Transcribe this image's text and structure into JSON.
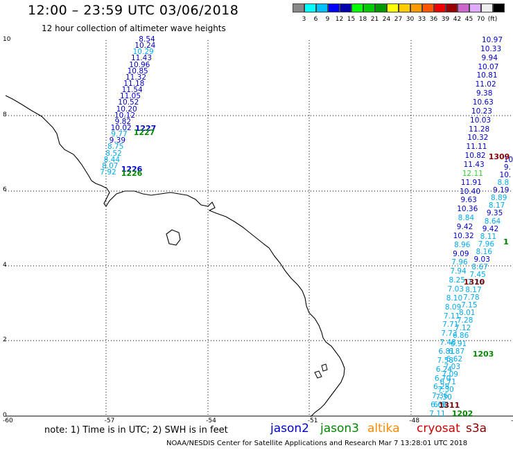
{
  "header": {
    "title": "12:00 – 23:59 UTC 03/06/2018",
    "subtitle": "12 hour collection of altimeter wave heights"
  },
  "legend": {
    "colors": [
      "#888888",
      "#00ffff",
      "#00bfff",
      "#0000ff",
      "#0000aa",
      "#00ff00",
      "#00cc00",
      "#009900",
      "#ffff00",
      "#ffcc00",
      "#ff9900",
      "#ff5500",
      "#ee0000",
      "#990000",
      "#cc66cc",
      "#ddaaff",
      "#eeeeee",
      "#000000"
    ],
    "labels": [
      "3",
      "6",
      "9",
      "12",
      "15",
      "18",
      "21",
      "24",
      "27",
      "30",
      "33",
      "36",
      "39",
      "42",
      "45",
      "70",
      "(ft)"
    ]
  },
  "axes": {
    "y_ticks": [
      "10",
      "8",
      "6",
      "4",
      "2",
      "0"
    ],
    "x_ticks": [
      "-60",
      "-57",
      "-54",
      "-51",
      "-48",
      "-45"
    ]
  },
  "note": "note:  1) Time is in UTC;  2) SWH is in feet",
  "satellites": [
    {
      "name": "jason2",
      "color": "#0000cc"
    },
    {
      "name": "jason3",
      "color": "#008800"
    },
    {
      "name": "altika",
      "color": "#ff8800"
    },
    {
      "name": "cryosat",
      "color": "#cc0000"
    },
    {
      "name": "s3a",
      "color": "#880000"
    }
  ],
  "footer": "NOAA/NESDIS Center for Satellite Applications and Research   Mar  7 13:28:01 UTC 2018",
  "map": {
    "track_1": [
      "8.54",
      "10.24",
      "10.29",
      "11.43",
      "10.96",
      "10.85",
      "11.32",
      "11.18",
      "11.54",
      "11.05",
      "10.52",
      "10.20",
      "10.12",
      "9.82",
      "10.02",
      "9.77",
      "9.39",
      "8.75",
      "8.52",
      "8.44",
      "8.07",
      "7.92"
    ],
    "track_1_color": [
      "#0000cc",
      "#0000cc",
      "#00aaee",
      "#0000cc",
      "#0000cc",
      "#0000cc",
      "#0000cc",
      "#0000cc",
      "#0000cc",
      "#0000cc",
      "#0000cc",
      "#0000cc",
      "#0000cc",
      "#0000cc",
      "#0000cc",
      "#00aaee",
      "#0000cc",
      "#00aaee",
      "#00aaee",
      "#00aaee",
      "#00aaee",
      "#00aaee"
    ],
    "track_2": [
      "10.97",
      "10.33",
      "9.94",
      "10.07",
      "10.81",
      "11.02",
      "9.38",
      "10.63",
      "10.23",
      "10.03",
      "11.28",
      "10.32",
      "11.11",
      "10.82",
      "11.43",
      "12.11",
      "11.91",
      "10.40",
      "9.63",
      "10.36",
      "8.84",
      "9.42",
      "10.32",
      "8.96",
      "9.09",
      "7.96",
      "7.94",
      "8.25",
      "7.03",
      "8.10",
      "8.09",
      "7.11",
      "7.71",
      "7.73",
      "7.48",
      "6.81",
      "7.58",
      "6.24",
      "6.70",
      "6.28",
      "7.36",
      "6.66",
      "7.11"
    ],
    "track_2_color": [
      "#0000cc",
      "#0000cc",
      "#0000cc",
      "#0000cc",
      "#0000cc",
      "#0000cc",
      "#0000cc",
      "#0000cc",
      "#0000cc",
      "#0000cc",
      "#0000cc",
      "#0000cc",
      "#0000cc",
      "#0000cc",
      "#0000cc",
      "#33cc33",
      "#0000cc",
      "#0000cc",
      "#0000cc",
      "#0000cc",
      "#00aaee",
      "#0000cc",
      "#0000cc",
      "#00aaee",
      "#0000cc",
      "#00aaee",
      "#00aaee",
      "#00aaee",
      "#00aaee",
      "#00aaee",
      "#00aaee",
      "#00aaee",
      "#00aaee",
      "#00aaee",
      "#00aaee",
      "#00aaee",
      "#00aaee",
      "#00aaee",
      "#00aaee",
      "#00aaee",
      "#00aaee",
      "#00aaee",
      "#00aaee"
    ],
    "track_3": [
      "10.",
      "9.",
      "10.",
      "8.8",
      "9.19",
      "8.89",
      "8.17",
      "9.35",
      "8.64",
      "9.42",
      "8.11",
      "7.96",
      "8.16",
      "9.03",
      "8.67",
      "7.45",
      "7.26",
      "8.17",
      "7.78",
      "7.15",
      "8.01",
      "7.28",
      "7.12",
      "6.86",
      "6.91",
      "6.87",
      "6.62",
      "7.03",
      "7.09",
      "6.71",
      "7.30",
      "7.30",
      "6.61"
    ],
    "track_3_color": [
      "#0000cc",
      "#0000cc",
      "#0000cc",
      "#00aaee",
      "#0000cc",
      "#00aaee",
      "#00aaee",
      "#0000cc",
      "#00aaee",
      "#0000cc",
      "#00aaee",
      "#00aaee",
      "#00aaee",
      "#0000cc",
      "#00aaee",
      "#00aaee",
      "#00aaee",
      "#00aaee",
      "#00aaee",
      "#00aaee",
      "#00aaee",
      "#00aaee",
      "#00aaee",
      "#00aaee",
      "#00aaee",
      "#00aaee",
      "#00aaee",
      "#00aaee",
      "#00aaee",
      "#00aaee",
      "#00aaee",
      "#00aaee",
      "#00aaee"
    ],
    "pass_labels": [
      {
        "text": "1227",
        "color": "#0000cc"
      },
      {
        "text": "1227",
        "color": "#008800"
      },
      {
        "text": "1226",
        "color": "#0000cc"
      },
      {
        "text": "1226",
        "color": "#008800"
      },
      {
        "text": "1309",
        "color": "#880000"
      },
      {
        "text": "1310",
        "color": "#880000"
      },
      {
        "text": "1203",
        "color": "#008800"
      },
      {
        "text": "1311",
        "color": "#880000"
      },
      {
        "text": "1202",
        "color": "#008800"
      },
      {
        "text": "1",
        "color": "#008800"
      },
      {
        "text": "1",
        "color": "#008800"
      }
    ]
  }
}
